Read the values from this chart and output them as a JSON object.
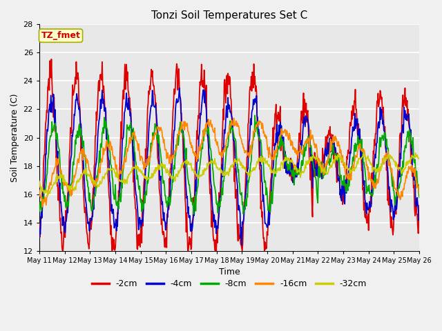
{
  "title": "Tonzi Soil Temperatures Set C",
  "xlabel": "Time",
  "ylabel": "Soil Temperature (C)",
  "ylim": [
    12,
    28
  ],
  "annotation": "TZ_fmet",
  "annotation_color": "#cc0000",
  "annotation_bg": "#ffffcc",
  "series_colors": [
    "#dd0000",
    "#0000cc",
    "#00aa00",
    "#ff8800",
    "#cccc00"
  ],
  "series_labels": [
    "-2cm",
    "-4cm",
    "-8cm",
    "-16cm",
    "-32cm"
  ],
  "bg_color": "#e8e8e8",
  "grid_color": "#ffffff",
  "x_tick_labels": [
    "May 11",
    "May 12",
    "May 13",
    "May 14",
    "May 15",
    "May 16",
    "May 17",
    "May 18",
    "May 19",
    "May 20",
    "May 21",
    "May 22",
    "May 23",
    "May 24",
    "May 25",
    "May 26"
  ],
  "yticks": [
    12,
    14,
    16,
    18,
    20,
    22,
    24,
    26,
    28
  ]
}
